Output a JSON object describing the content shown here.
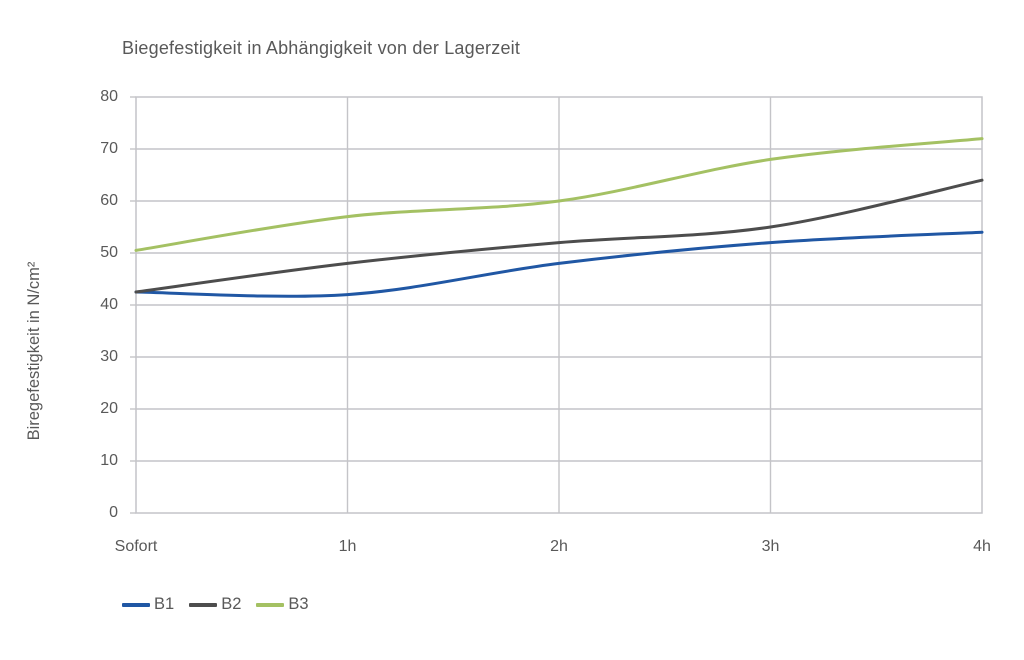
{
  "page": {
    "background": "#ffffff"
  },
  "chart_data": {
    "type": "line",
    "title": "Biegefestigkeit in Abhängigkeit von der Lagerzeit",
    "xlabel": "",
    "ylabel": "Biregefestigkeit in N/cm²",
    "categories": [
      "Sofort",
      "1h",
      "2h",
      "3h",
      "4h"
    ],
    "series": [
      {
        "name": "B1",
        "color": "#2057A4",
        "values": [
          42.5,
          42,
          48,
          52,
          54
        ]
      },
      {
        "name": "B2",
        "color": "#4D4D4D",
        "values": [
          42.5,
          48,
          52,
          55,
          64
        ]
      },
      {
        "name": "B3",
        "color": "#A4C163",
        "values": [
          50.5,
          57,
          60,
          68,
          72
        ]
      }
    ],
    "ylim": [
      0,
      80
    ],
    "yticks": [
      0,
      10,
      20,
      30,
      40,
      50,
      60,
      70,
      80
    ],
    "grid": true,
    "legend_position": "bottom-left",
    "style": {
      "grid_color": "#C4C4C8",
      "text_color": "#595959",
      "line_width": 3
    }
  }
}
